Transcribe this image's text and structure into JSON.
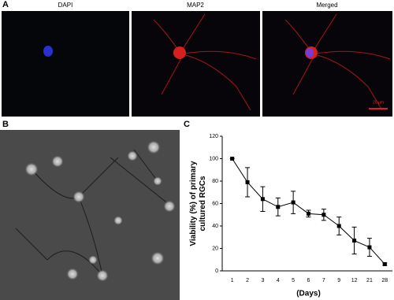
{
  "panel_labels": [
    "A",
    "B",
    "C"
  ],
  "image_titles": [
    "DAPI",
    "MAP2",
    "Merged"
  ],
  "scale_bar": "20 μm",
  "chart_data": {
    "type": "line",
    "ylabel": "Viability (%) of primary cultured RGCs",
    "xlabel": "(Days)",
    "categories": [
      "1",
      "2",
      "3",
      "4",
      "5",
      "6",
      "7",
      "9",
      "12",
      "21",
      "28"
    ],
    "values": [
      100,
      79,
      64,
      57,
      61,
      51,
      50,
      40,
      27,
      21,
      6
    ],
    "errors": [
      0,
      13,
      11,
      8,
      10,
      3,
      5,
      8,
      12,
      8,
      1
    ],
    "color": "#000000",
    "ylim": [
      0,
      120
    ],
    "yticks": [
      0,
      20,
      40,
      60,
      80,
      100,
      120
    ]
  }
}
